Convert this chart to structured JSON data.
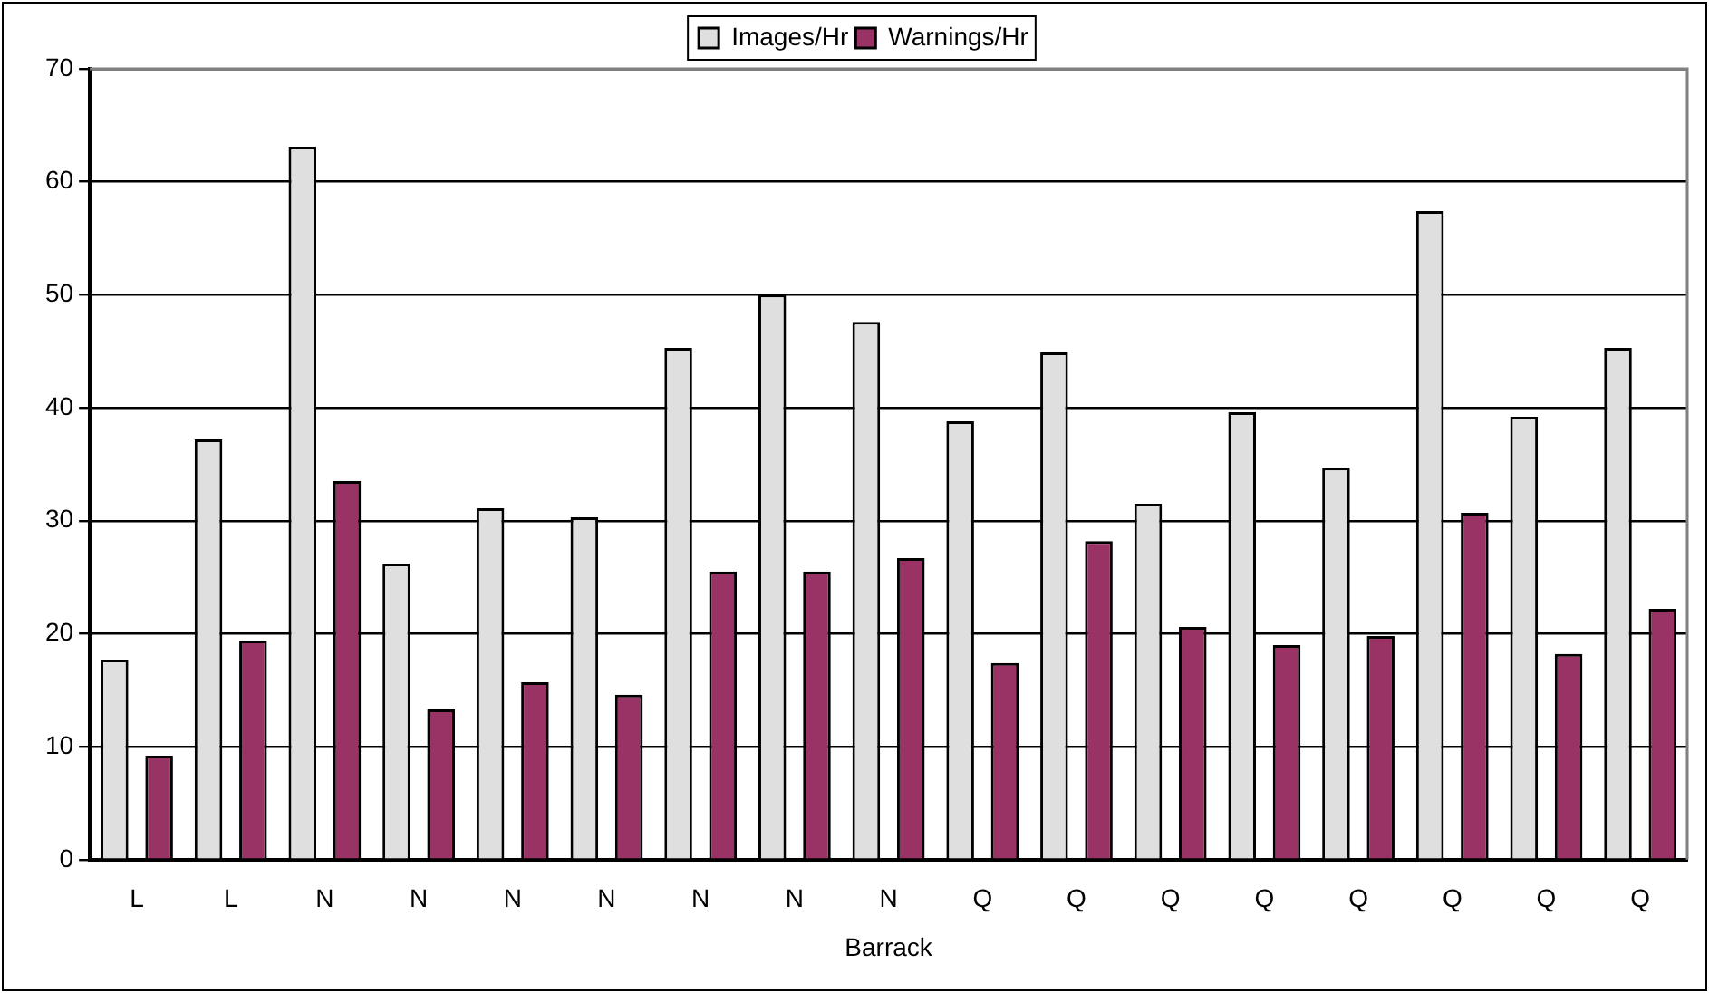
{
  "chart_data": {
    "type": "bar",
    "xlabel": "Barrack",
    "categories": [
      "L",
      "L",
      "N",
      "N",
      "N",
      "N",
      "N",
      "N",
      "N",
      "Q",
      "Q",
      "Q",
      "Q",
      "Q",
      "Q",
      "Q",
      "Q"
    ],
    "series": [
      {
        "name": "Images/Hr",
        "color": "#dfdfdf",
        "values": [
          17.7,
          37.2,
          63.1,
          26.2,
          31.1,
          30.3,
          45.3,
          50.0,
          47.6,
          38.8,
          44.9,
          31.5,
          39.6,
          34.7,
          57.4,
          39.2,
          45.3
        ]
      },
      {
        "name": "Warnings/Hr",
        "color": "#993366",
        "values": [
          9.2,
          19.4,
          33.5,
          13.3,
          15.7,
          14.6,
          25.5,
          25.5,
          26.7,
          17.4,
          28.2,
          20.6,
          19.0,
          19.8,
          30.7,
          18.2,
          22.2
        ]
      }
    ],
    "ylim": [
      0,
      70
    ],
    "yticks": [
      0,
      10,
      20,
      30,
      40,
      50,
      60,
      70
    ],
    "grid": "y",
    "legend": "top"
  }
}
